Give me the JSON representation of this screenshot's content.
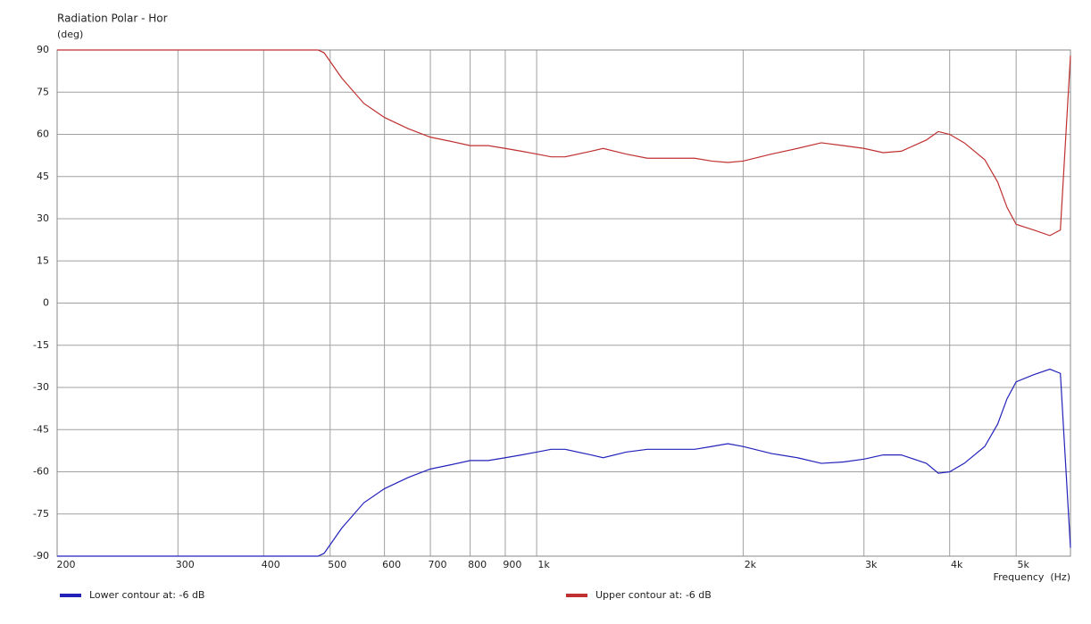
{
  "chart_data": {
    "type": "line",
    "title": "Radiation Polar - Hor",
    "y_label": "(deg)",
    "x_label": "Frequency  (Hz)",
    "x_scale": "log",
    "grid": true,
    "legend": "bottom",
    "x": [
      200,
      480,
      490,
      520,
      560,
      600,
      650,
      700,
      750,
      800,
      850,
      900,
      950,
      1000,
      1050,
      1100,
      1200,
      1250,
      1350,
      1450,
      1600,
      1700,
      1800,
      1900,
      2000,
      2200,
      2400,
      2600,
      2800,
      3000,
      3200,
      3400,
      3700,
      3850,
      4000,
      4200,
      4500,
      4700,
      4850,
      5000,
      5300,
      5600,
      5800,
      6000
    ],
    "series": [
      {
        "name": "Lower contour at: -6 dB",
        "color": "#2222bb",
        "values": [
          -90,
          -90,
          -89,
          -80,
          -71,
          -66,
          -62,
          -59,
          -57.5,
          -56,
          -56,
          -55,
          -54,
          -53,
          -52,
          -52,
          -54,
          -55,
          -53,
          -52,
          -52,
          -52,
          -51,
          -50,
          -51,
          -53.5,
          -55,
          -57,
          -56.5,
          -55.5,
          -54,
          -54,
          -57,
          -60.5,
          -60,
          -57,
          -51,
          -43,
          -34,
          -28,
          -25.5,
          -23.5,
          -25,
          -87
        ]
      },
      {
        "name": "Upper contour at: -6 dB",
        "color": "#c03030",
        "values": [
          90,
          90,
          89,
          80,
          71,
          66,
          62,
          59,
          57.5,
          56,
          56,
          55,
          54,
          53,
          52,
          52,
          54,
          55,
          53,
          51.5,
          51.5,
          51.5,
          50.5,
          50,
          50.5,
          53,
          55,
          57,
          56,
          55,
          53.5,
          54,
          58,
          61,
          60,
          57,
          51,
          43,
          34,
          28,
          26,
          24,
          26,
          88
        ]
      }
    ],
    "xlim": [
      200,
      6000
    ],
    "xticks": [
      200,
      300,
      400,
      500,
      600,
      700,
      800,
      900,
      {
        "value": 1000,
        "label": "1k"
      },
      {
        "value": 2000,
        "label": "2k"
      },
      {
        "value": 3000,
        "label": "3k"
      },
      {
        "value": 4000,
        "label": "4k"
      },
      {
        "value": 5000,
        "label": "5k"
      }
    ],
    "ylim": [
      -90,
      90
    ],
    "yticks": [
      90,
      75,
      60,
      45,
      30,
      15,
      0,
      -15,
      -30,
      -45,
      -60,
      -75,
      -90
    ]
  }
}
